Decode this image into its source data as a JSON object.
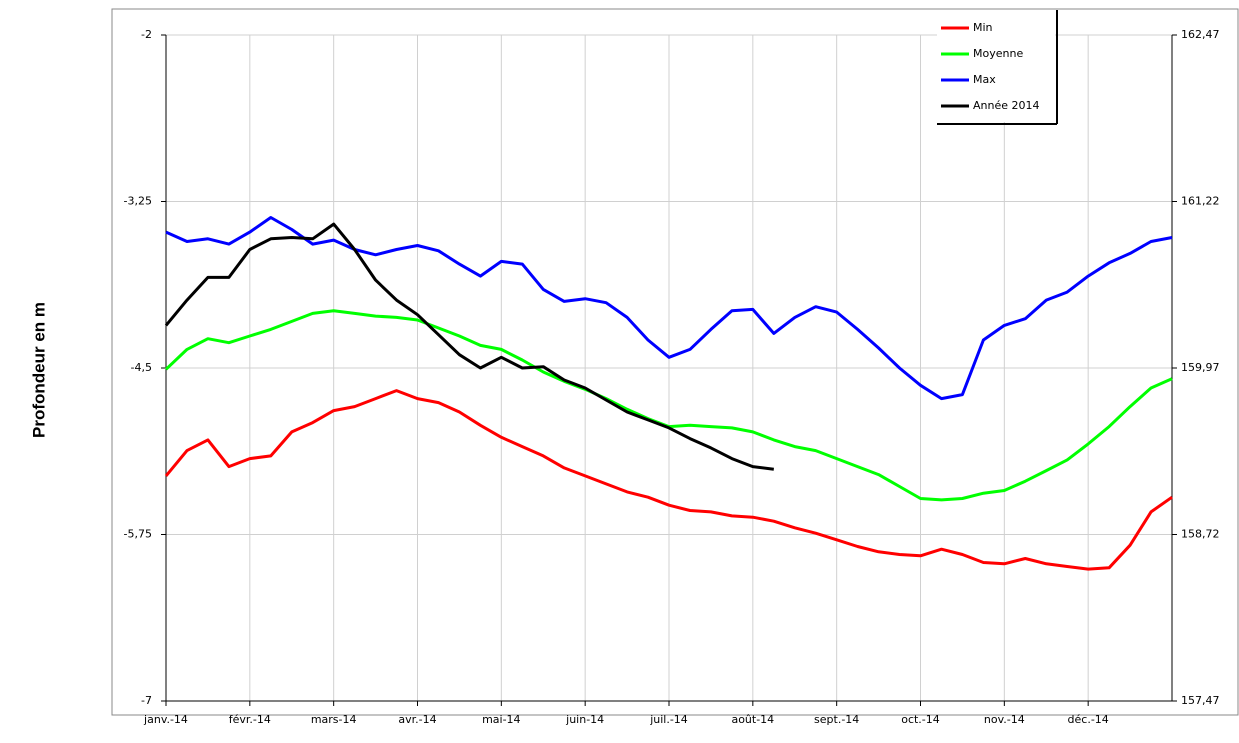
{
  "chart_data": {
    "type": "line",
    "y_label": "Profondeur en m",
    "categories": [
      "janv.-14",
      null,
      null,
      null,
      "févr.-14",
      null,
      null,
      null,
      "mars-14",
      null,
      null,
      null,
      "avr.-14",
      null,
      null,
      null,
      "mai-14",
      null,
      null,
      null,
      "juin-14",
      null,
      null,
      null,
      "juil.-14",
      null,
      null,
      null,
      "août-14",
      null,
      null,
      null,
      "sept.-14",
      null,
      null,
      null,
      "oct.-14",
      null,
      null,
      null,
      "nov.-14",
      null,
      null,
      null,
      "déc.-14",
      null,
      null,
      null,
      null
    ],
    "series": [
      {
        "name": "Min",
        "color": "#ff0000",
        "values": [
          -5.31,
          -5.12,
          -5.04,
          -5.24,
          -5.18,
          -5.16,
          -4.98,
          -4.91,
          -4.82,
          -4.79,
          -4.73,
          -4.67,
          -4.73,
          -4.76,
          -4.83,
          -4.93,
          -5.02,
          -5.09,
          -5.16,
          -5.25,
          -5.31,
          -5.37,
          -5.43,
          -5.47,
          -5.53,
          -5.57,
          -5.58,
          -5.61,
          -5.62,
          -5.65,
          -5.7,
          -5.74,
          -5.79,
          -5.84,
          -5.88,
          -5.9,
          -5.91,
          -5.86,
          -5.9,
          -5.96,
          -5.97,
          -5.93,
          -5.97,
          -5.99,
          -6.01,
          -6.0,
          -5.83,
          -5.58,
          -5.47
        ]
      },
      {
        "name": "Moyenne",
        "color": "#00ff00",
        "values": [
          -4.51,
          -4.36,
          -4.28,
          -4.31,
          -4.26,
          -4.21,
          -4.15,
          -4.09,
          -4.07,
          -4.09,
          -4.11,
          -4.12,
          -4.14,
          -4.2,
          -4.26,
          -4.33,
          -4.36,
          -4.44,
          -4.53,
          -4.6,
          -4.66,
          -4.73,
          -4.81,
          -4.88,
          -4.94,
          -4.93,
          -4.94,
          -4.95,
          -4.98,
          -5.04,
          -5.09,
          -5.12,
          -5.18,
          -5.24,
          -5.3,
          -5.39,
          -5.48,
          -5.49,
          -5.48,
          -5.44,
          -5.42,
          -5.35,
          -5.27,
          -5.19,
          -5.07,
          -4.94,
          -4.79,
          -4.65,
          -4.58
        ]
      },
      {
        "name": "Max",
        "color": "#0000ff",
        "values": [
          -3.48,
          -3.55,
          -3.53,
          -3.57,
          -3.48,
          -3.37,
          -3.46,
          -3.57,
          -3.54,
          -3.61,
          -3.65,
          -3.61,
          -3.58,
          -3.62,
          -3.72,
          -3.81,
          -3.7,
          -3.72,
          -3.91,
          -4.0,
          -3.98,
          -4.01,
          -4.12,
          -4.29,
          -4.42,
          -4.36,
          -4.21,
          -4.07,
          -4.06,
          -4.24,
          -4.12,
          -4.04,
          -4.08,
          -4.21,
          -4.35,
          -4.5,
          -4.63,
          -4.73,
          -4.7,
          -4.29,
          -4.18,
          -4.13,
          -3.99,
          -3.93,
          -3.81,
          -3.71,
          -3.64,
          -3.55,
          -3.52
        ]
      },
      {
        "name": "Année 2014",
        "color": "#000000",
        "values": [
          -4.18,
          -3.99,
          -3.82,
          -3.82,
          -3.61,
          -3.53,
          -3.52,
          -3.53,
          -3.42,
          -3.61,
          -3.84,
          -3.99,
          -4.1,
          -4.25,
          -4.4,
          -4.5,
          -4.42,
          -4.5,
          -4.49,
          -4.59,
          -4.65,
          -4.74,
          -4.83,
          -4.89,
          -4.95,
          -5.03,
          -5.1,
          -5.18,
          -5.24,
          -5.26,
          null,
          null,
          null,
          null,
          null,
          null,
          null,
          null,
          null,
          null,
          null,
          null,
          null,
          null,
          null,
          null,
          null,
          null,
          null
        ]
      }
    ],
    "ylim": [
      -7,
      -2
    ],
    "yticks": [
      {
        "value": -2,
        "label": "-2"
      },
      {
        "value": -3.25,
        "label": "-3,25"
      },
      {
        "value": -4.5,
        "label": "-4,5"
      },
      {
        "value": -5.75,
        "label": "-5,75"
      },
      {
        "value": -7,
        "label": "-7"
      }
    ],
    "y2lim": [
      157.47,
      162.47
    ],
    "y2ticks": [
      {
        "value": 162.47,
        "label": "162,47"
      },
      {
        "value": 161.22,
        "label": "161,22"
      },
      {
        "value": 159.97,
        "label": "159,97"
      },
      {
        "value": 158.72,
        "label": "158,72"
      },
      {
        "value": 157.47,
        "label": "157,47"
      }
    ],
    "grid": true,
    "legend": "top-right"
  }
}
